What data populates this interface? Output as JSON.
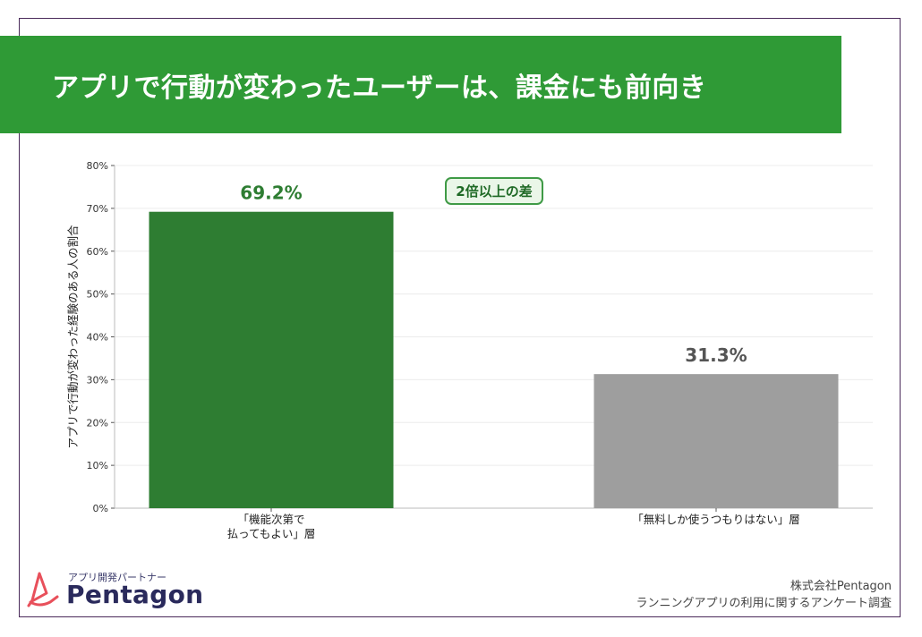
{
  "title": "アプリで行動が変わったユーザーは、課金にも前向き",
  "callout": "2倍以上の差",
  "logo": {
    "tagline": "アプリ開発パートナー",
    "name": "Pentagon"
  },
  "source": {
    "company": "株式会社Pentagon",
    "survey": "ランニングアプリの利用に関するアンケート調査"
  },
  "colors": {
    "banner": "#2f9a36",
    "bar_green": "#2e7d32",
    "bar_gray": "#9e9e9e",
    "value_green": "#2e7d32",
    "value_gray": "#555555"
  },
  "chart_data": {
    "type": "bar",
    "categories": [
      "「機能次第で\n払ってもよい」層",
      "「無料しか使うつもりはない」層"
    ],
    "values": [
      69.2,
      31.3
    ],
    "value_labels": [
      "69.2%",
      "31.3%"
    ],
    "ylabel": "アプリで行動が変わった経験のある人の割合",
    "xlabel": "",
    "ylim": [
      0,
      80
    ],
    "yticks": [
      "0%",
      "10%",
      "20%",
      "30%",
      "40%",
      "50%",
      "60%",
      "70%",
      "80%"
    ],
    "grid": true
  }
}
